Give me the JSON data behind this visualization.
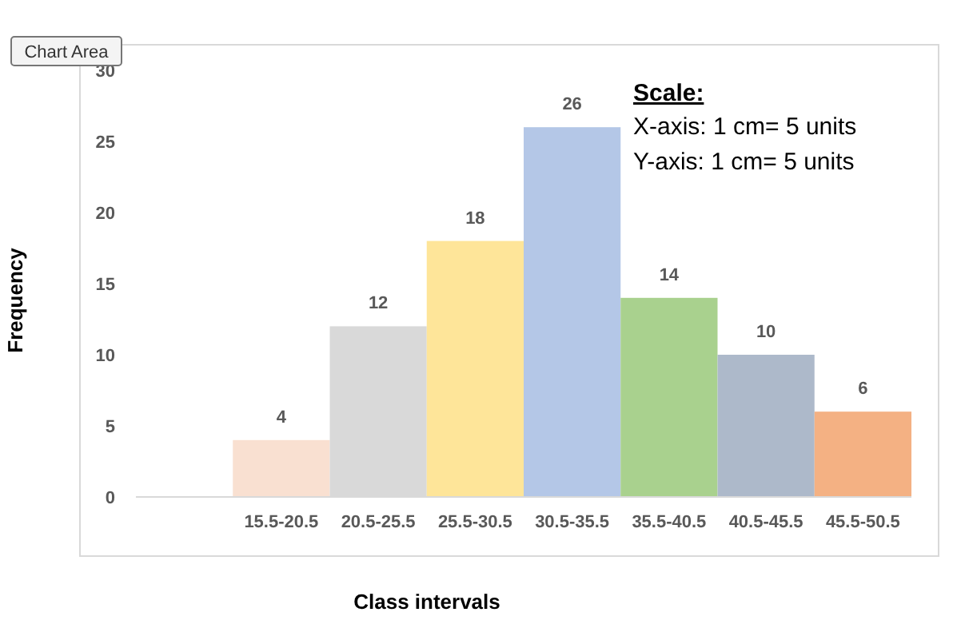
{
  "chart_data": {
    "type": "bar",
    "xlabel": "Class intervals",
    "ylabel": "Frequency",
    "categories": [
      null,
      "15.5-20.5",
      "20.5-25.5",
      "25.5-30.5",
      "30.5-35.5",
      "35.5-40.5",
      "40.5-45.5",
      "45.5-50.5"
    ],
    "values": [
      null,
      4,
      12,
      18,
      26,
      14,
      10,
      6
    ],
    "colors": [
      null,
      "#f9e0d1",
      "#d9d9d9",
      "#fee599",
      "#b4c7e7",
      "#a9d18e",
      "#adb9ca",
      "#f4b183"
    ],
    "ylim": [
      0,
      30
    ],
    "yticks": [
      0,
      5,
      10,
      15,
      20,
      25,
      30
    ],
    "grid": false,
    "data_labels": true,
    "annotations": [
      "Scale:",
      "X-axis: 1 cm= 5 units",
      "Y-axis: 1 cm= 5 units",
      "Chart Area"
    ]
  }
}
